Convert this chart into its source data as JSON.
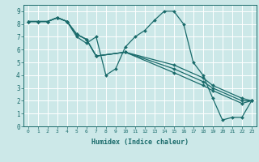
{
  "xlabel": "Humidex (Indice chaleur)",
  "bg_color": "#cce8e8",
  "line_color": "#1a6b6b",
  "grid_color": "#ffffff",
  "xlim": [
    -0.5,
    23.5
  ],
  "ylim": [
    0,
    9.5
  ],
  "xticks": [
    0,
    1,
    2,
    3,
    4,
    5,
    6,
    7,
    8,
    9,
    10,
    11,
    12,
    13,
    14,
    15,
    16,
    17,
    18,
    19,
    20,
    21,
    22,
    23
  ],
  "yticks": [
    0,
    1,
    2,
    3,
    4,
    5,
    6,
    7,
    8,
    9
  ],
  "lines": [
    {
      "x": [
        0,
        1,
        2,
        3,
        4,
        5,
        6,
        7,
        8,
        9,
        10,
        11,
        12,
        13,
        14,
        15,
        16,
        17,
        18,
        19,
        20,
        21,
        22,
        23
      ],
      "y": [
        8.2,
        8.2,
        8.2,
        8.5,
        8.2,
        7.0,
        6.5,
        7.0,
        4.0,
        4.5,
        6.2,
        7.0,
        7.5,
        8.3,
        9.0,
        9.0,
        8.0,
        5.0,
        4.0,
        2.2,
        0.5,
        0.7,
        0.7,
        2.0
      ]
    },
    {
      "x": [
        0,
        1,
        2,
        3,
        4,
        5,
        6,
        7,
        10,
        15,
        18,
        19,
        22,
        23
      ],
      "y": [
        8.2,
        8.2,
        8.2,
        8.5,
        8.2,
        7.2,
        6.8,
        5.5,
        5.8,
        4.2,
        3.2,
        2.8,
        1.8,
        2.0
      ]
    },
    {
      "x": [
        0,
        1,
        2,
        3,
        4,
        5,
        6,
        7,
        10,
        15,
        18,
        19,
        22,
        23
      ],
      "y": [
        8.2,
        8.2,
        8.2,
        8.5,
        8.2,
        7.2,
        6.8,
        5.5,
        5.8,
        4.5,
        3.5,
        3.0,
        2.0,
        2.0
      ]
    },
    {
      "x": [
        0,
        1,
        2,
        3,
        4,
        5,
        6,
        7,
        10,
        15,
        18,
        19,
        22,
        23
      ],
      "y": [
        8.2,
        8.2,
        8.2,
        8.5,
        8.2,
        7.2,
        6.8,
        5.5,
        5.8,
        4.8,
        3.8,
        3.2,
        2.2,
        2.0
      ]
    }
  ]
}
